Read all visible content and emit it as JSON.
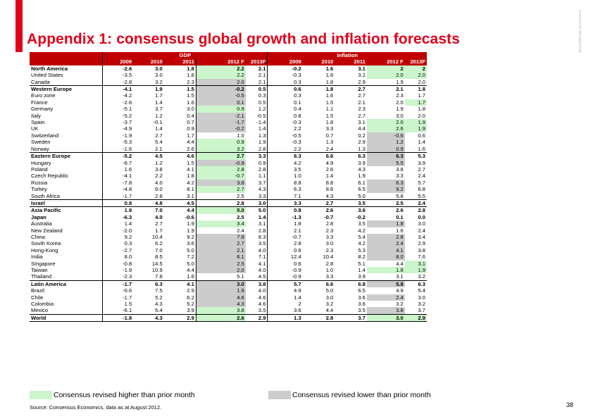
{
  "title": "Appendix 1: consensus global growth and inflation forecasts",
  "side_label": "Investment Management",
  "colors": {
    "accent": "#e1001a",
    "header": "#c00000",
    "revised_higher": "#ccf5cc",
    "revised_lower": "#cccccc"
  },
  "table": {
    "groups": [
      "GDP",
      "Inflation"
    ],
    "years": [
      "2009",
      "2010",
      "2011",
      "2012 F",
      "2013F",
      "2009",
      "2010",
      "2011",
      "2012 F",
      "2013F"
    ],
    "rows": [
      {
        "country": "North America",
        "region": true,
        "values": [
          "-2.6",
          "3.0",
          "1.8",
          "2.2",
          "2.1",
          "-0.2",
          "1.6",
          "3.1",
          "2",
          "2"
        ],
        "flags": [
          "",
          "",
          "",
          "u",
          "",
          "",
          "",
          "",
          "u",
          "u"
        ]
      },
      {
        "country": "United States",
        "values": [
          "-3.5",
          "3.0",
          "1.8",
          "2.2",
          "2.1",
          "-0.3",
          "1.6",
          "3.2",
          "2.0",
          "2.0"
        ],
        "flags": [
          "",
          "",
          "",
          "u",
          "",
          "",
          "",
          "",
          "u",
          "u"
        ]
      },
      {
        "country": "Canada",
        "values": [
          "-2.8",
          "3.2",
          "2.3",
          "2.0",
          "2.1",
          "0.3",
          "1.8",
          "2.9",
          "1.9",
          "2.0"
        ],
        "flags": [
          "",
          "",
          "",
          "d",
          "",
          "",
          "",
          "",
          "",
          ""
        ]
      },
      {
        "country": "Western Europe",
        "region": true,
        "values": [
          "-4.1",
          "1.9",
          "1.5",
          "-0.2",
          "0.5",
          "0.6",
          "1.8",
          "2.7",
          "2.1",
          "1.8"
        ],
        "flags": [
          "",
          "",
          "",
          "d",
          "",
          "",
          "",
          "",
          "",
          ""
        ]
      },
      {
        "country": "Euro zone",
        "values": [
          "-4.2",
          "1.7",
          "1.5",
          "-0.5",
          "0.3",
          "0.3",
          "1.6",
          "2.7",
          "2.3",
          "1.7"
        ],
        "flags": [
          "",
          "",
          "",
          "d",
          "",
          "",
          "",
          "",
          "",
          ""
        ]
      },
      {
        "country": "France",
        "values": [
          "-2.6",
          "1.4",
          "1.6",
          "0.1",
          "0.5",
          "0.1",
          "1.5",
          "2.1",
          "2.0",
          "1.7"
        ],
        "flags": [
          "",
          "",
          "",
          "d",
          "",
          "",
          "",
          "",
          "",
          "u"
        ]
      },
      {
        "country": "Germany",
        "values": [
          "-5.1",
          "3.7",
          "3.0",
          "0.9",
          "1.2",
          "0.4",
          "1.1",
          "2.3",
          "1.9",
          "1.8"
        ],
        "flags": [
          "",
          "",
          "",
          "u",
          "",
          "",
          "",
          "",
          "",
          ""
        ]
      },
      {
        "country": "Italy",
        "values": [
          "-5.2",
          "1.2",
          "0.4",
          "-2.1",
          "-0.5",
          "0.8",
          "1.5",
          "2.7",
          "3.0",
          "2.0"
        ],
        "flags": [
          "",
          "",
          "",
          "d",
          "",
          "",
          "",
          "",
          "",
          ""
        ]
      },
      {
        "country": "Spain",
        "values": [
          "-3.7",
          "-0.1",
          "0.7",
          "-1.7",
          "-1.4",
          "-0.3",
          "1.8",
          "3.1",
          "2.0",
          "1.9"
        ],
        "flags": [
          "",
          "",
          "",
          "d",
          "",
          "",
          "",
          "",
          "u",
          "u"
        ]
      },
      {
        "country": "UK",
        "values": [
          "-4.9",
          "1.4",
          "0.9",
          "-0.2",
          "1.4",
          "2.2",
          "3.3",
          "4.4",
          "2.6",
          "1.9"
        ],
        "flags": [
          "",
          "",
          "",
          "d",
          "",
          "",
          "",
          "",
          "u",
          "u"
        ]
      },
      {
        "country": "Switzerland",
        "values": [
          "-1.9",
          "2.7",
          "1.7",
          "1.0",
          "1.3",
          "-0.5",
          "0.7",
          "0.2",
          "-0.6",
          "0.6"
        ],
        "flags": [
          "",
          "",
          "",
          "",
          "",
          "",
          "",
          "",
          "d",
          ""
        ]
      },
      {
        "country": "Sweden",
        "values": [
          "-5.3",
          "5.4",
          "4.4",
          "0.9",
          "1.9",
          "-0.3",
          "1.3",
          "2.9",
          "1.2",
          "1.4"
        ],
        "flags": [
          "",
          "",
          "",
          "u",
          "",
          "",
          "",
          "",
          "d",
          ""
        ]
      },
      {
        "country": "Norway",
        "values": [
          "-1.6",
          "2.1",
          "2.6",
          "3.2",
          "2.8",
          "2.2",
          "2.4",
          "1.3",
          "0.9",
          "1.6"
        ],
        "flags": [
          "",
          "",
          "",
          "u",
          "",
          "",
          "",
          "",
          "d",
          ""
        ]
      },
      {
        "country": "Eastern Europe",
        "region": true,
        "values": [
          "-5.2",
          "4.5",
          "4.6",
          "2.7",
          "3.3",
          "6.3",
          "6.6",
          "6.3",
          "6.3",
          "5.3"
        ],
        "flags": [
          "",
          "",
          "",
          "u",
          "",
          "",
          "",
          "",
          "d",
          ""
        ]
      },
      {
        "country": "Hungary",
        "values": [
          "-6.7",
          "1.2",
          "1.5",
          "-0.9",
          "0.9",
          "4.2",
          "4.9",
          "3.9",
          "5.5",
          "3.9"
        ],
        "flags": [
          "",
          "",
          "",
          "d",
          "",
          "",
          "",
          "",
          "d",
          ""
        ]
      },
      {
        "country": "Poland",
        "values": [
          "1.6",
          "3.8",
          "4.1",
          "2.8",
          "2.8",
          "3.5",
          "2.6",
          "4.3",
          "3.8",
          "2.7"
        ],
        "flags": [
          "",
          "",
          "",
          "u",
          "",
          "",
          "",
          "",
          "",
          ""
        ]
      },
      {
        "country": "Czech Republic",
        "values": [
          "-4.1",
          "2.2",
          "1.8",
          "-0.7",
          "1.1",
          "1.0",
          "1.4",
          "1.9",
          "3.3",
          "2.4"
        ],
        "flags": [
          "",
          "",
          "",
          "u",
          "",
          "",
          "",
          "",
          "",
          ""
        ]
      },
      {
        "country": "Russia",
        "values": [
          "-7.8",
          "4.0",
          "4.2",
          "3.8",
          "3.7",
          "8.8",
          "8.8",
          "6.1",
          "6.3",
          "5.7"
        ],
        "flags": [
          "",
          "",
          "",
          "d",
          "",
          "",
          "",
          "",
          "d",
          ""
        ]
      },
      {
        "country": "Turkey",
        "values": [
          "-4.8",
          "9.0",
          "8.1",
          "2.7",
          "4.3",
          "6.3",
          "8.6",
          "6.5",
          "9.2",
          "6.8"
        ],
        "flags": [
          "",
          "",
          "",
          "u",
          "",
          "",
          "",
          "",
          "d",
          ""
        ]
      },
      {
        "country": "South Africa",
        "values": [
          "-1.7",
          "2.8",
          "3.1",
          "2.5",
          "3.3",
          "7.1",
          "4.3",
          "5.0",
          "5.8",
          "5.5"
        ],
        "flags": [
          "",
          "",
          "",
          "",
          "",
          "",
          "",
          "",
          "",
          ""
        ]
      },
      {
        "country": "Israel",
        "region": true,
        "values": [
          "0.8",
          "4.8",
          "4.5",
          "2.8",
          "3.0",
          "3.3",
          "2.7",
          "3.5",
          "2.5",
          "2.4"
        ],
        "flags": [
          "",
          "",
          "",
          "",
          "",
          "",
          "",
          "",
          "",
          ""
        ]
      },
      {
        "country": "Asia Pacific",
        "region": true,
        "values": [
          "1.9",
          "7.0",
          "4.4",
          "5.0",
          "5.0",
          "0.8",
          "2.6",
          "3.6",
          "2.6",
          "2.8"
        ],
        "flags": [
          "",
          "",
          "",
          "u",
          "",
          "",
          "",
          "",
          "",
          ""
        ]
      },
      {
        "country": "Japan",
        "region": true,
        "values": [
          "-6.3",
          "4.0",
          "-0.6",
          "2.5",
          "1.4",
          "-1.3",
          "-0.7",
          "-0.2",
          "0.1",
          "0.0"
        ],
        "flags": [
          "",
          "",
          "",
          "",
          "",
          "",
          "",
          "",
          "",
          ""
        ]
      },
      {
        "country": "Australia",
        "values": [
          "1.4",
          "2.7",
          "1.9",
          "3.4",
          "3.1",
          "1.8",
          "2.8",
          "3.5",
          "1.8",
          "3.0"
        ],
        "flags": [
          "",
          "",
          "",
          "u",
          "",
          "",
          "",
          "",
          "d",
          ""
        ]
      },
      {
        "country": "New Zealand",
        "values": [
          "-2.0",
          "1.7",
          "1.9",
          "2.4",
          "2.8",
          "2.1",
          "2.3",
          "4.2",
          "1.6",
          "2.4"
        ],
        "flags": [
          "",
          "",
          "",
          "",
          "",
          "",
          "",
          "",
          "",
          ""
        ]
      },
      {
        "country": "China",
        "values": [
          "9.2",
          "10.4",
          "9.2",
          "7.9",
          "8.3",
          "-0.7",
          "3.3",
          "5.4",
          "2.8",
          "3.4"
        ],
        "flags": [
          "",
          "",
          "",
          "d",
          "",
          "",
          "",
          "",
          "d",
          ""
        ]
      },
      {
        "country": "South Korea",
        "values": [
          "0.3",
          "6.2",
          "3.6",
          "2.7",
          "3.5",
          "2.8",
          "3.0",
          "4.2",
          "2.4",
          "2.9"
        ],
        "flags": [
          "",
          "",
          "",
          "d",
          "",
          "",
          "",
          "",
          "d",
          ""
        ]
      },
      {
        "country": "Hong-Kong",
        "values": [
          "-2.7",
          "7.0",
          "5.0",
          "2.1",
          "4.0",
          "0.6",
          "2.3",
          "5.3",
          "4.1",
          "3.8"
        ],
        "flags": [
          "",
          "",
          "",
          "d",
          "",
          "",
          "",
          "",
          "d",
          ""
        ]
      },
      {
        "country": "India",
        "values": [
          "8.0",
          "8.5",
          "7.2",
          "6.1",
          "7.1",
          "12.4",
          "10.4",
          "8.2",
          "8.0",
          "7.6"
        ],
        "flags": [
          "",
          "",
          "",
          "d",
          "",
          "",
          "",
          "",
          "d",
          ""
        ]
      },
      {
        "country": "Singapore",
        "values": [
          "-0.8",
          "14.5",
          "5.0",
          "2.5",
          "4.1",
          "0.6",
          "2.8",
          "5.1",
          "4.4",
          "3.1"
        ],
        "flags": [
          "",
          "",
          "",
          "d",
          "",
          "",
          "",
          "",
          "",
          "u"
        ]
      },
      {
        "country": "Taiwan",
        "values": [
          "-1.9",
          "10.9",
          "4.4",
          "2.0",
          "4.0",
          "-0.9",
          "1.0",
          "1.4",
          "1.8",
          "1.9"
        ],
        "flags": [
          "",
          "",
          "",
          "d",
          "",
          "",
          "",
          "",
          "u",
          "u"
        ]
      },
      {
        "country": "Thailand",
        "values": [
          "-2.3",
          "7.8",
          "1.6",
          "5.1",
          "4.5",
          "-0.9",
          "3.3",
          "3.9",
          "3.1",
          "3.2"
        ],
        "flags": [
          "",
          "",
          "",
          "",
          "",
          "",
          "",
          "",
          "",
          ""
        ]
      },
      {
        "country": "Latin America",
        "region": true,
        "values": [
          "-1.7",
          "6.3",
          "4.1",
          "3.0",
          "3.8",
          "5.7",
          "6.6",
          "6.8",
          "5.8",
          "6.3"
        ],
        "flags": [
          "",
          "",
          "",
          "d",
          "",
          "",
          "",
          "",
          "d",
          ""
        ]
      },
      {
        "country": "Brazil",
        "values": [
          "-0.6",
          "7.5",
          "2.9",
          "1.9",
          "4.0",
          "4.9",
          "5.0",
          "6.5",
          "4.9",
          "5.4"
        ],
        "flags": [
          "",
          "",
          "",
          "d",
          "",
          "",
          "",
          "",
          "",
          ""
        ]
      },
      {
        "country": "Chile",
        "values": [
          "-1.7",
          "5.2",
          "6.2",
          "4.6",
          "4.6",
          "1.4",
          "3.0",
          "3.6",
          "2.4",
          "3.0"
        ],
        "flags": [
          "",
          "",
          "",
          "d",
          "",
          "",
          "",
          "",
          "d",
          ""
        ]
      },
      {
        "country": "Colombia",
        "values": [
          "1.5",
          "4.3",
          "5.2",
          "4.3",
          "4.6",
          "2",
          "3.2",
          "3.6",
          "3.2",
          "3.2"
        ],
        "flags": [
          "",
          "",
          "",
          "d",
          "",
          "",
          "",
          "",
          "",
          ""
        ]
      },
      {
        "country": "Mexico",
        "values": [
          "-6.1",
          "5.4",
          "3.9",
          "3.8",
          "3.5",
          "3.6",
          "4.4",
          "3.5",
          "3.8",
          "3.7"
        ],
        "flags": [
          "",
          "",
          "",
          "u",
          "",
          "",
          "",
          "",
          "d",
          ""
        ]
      },
      {
        "country": "World",
        "region": true,
        "values": [
          "-1.8",
          "4.3",
          "2.9",
          "2.6",
          "2.9",
          "1.3",
          "2.8",
          "3.7",
          "3.0",
          "2.9"
        ],
        "flags": [
          "",
          "",
          "",
          "u",
          "",
          "",
          "",
          "",
          "u",
          "u"
        ]
      }
    ]
  },
  "legend": {
    "higher": "Consensus revised higher than prior month",
    "lower": "Consensus revised lower than prior month"
  },
  "source": "Source: Consensus Economics, data as at August 2012.",
  "page_number": "38"
}
